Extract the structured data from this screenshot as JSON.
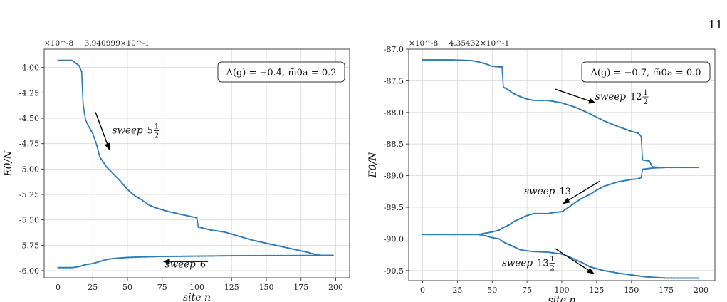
{
  "page_number": "11",
  "chart_data": [
    {
      "type": "line",
      "xlabel": "site n",
      "ylabel": "E0/N",
      "y_offset": "×10^-8 − 3.940999×10^-1",
      "xlim": [
        -10,
        210
      ],
      "ylim": [
        -6.07,
        -3.82
      ],
      "xticks": [
        0,
        25,
        50,
        75,
        100,
        125,
        150,
        175,
        200
      ],
      "yticks": [
        -6.0,
        -5.75,
        -5.5,
        -5.25,
        -5.0,
        -4.75,
        -4.5,
        -4.25,
        -4.0
      ],
      "ytick_labels": [
        "-6.00",
        "-5.75",
        "-5.50",
        "-5.25",
        "-5.00",
        "-4.75",
        "-4.50",
        "-4.25",
        "-4.00"
      ],
      "grid": true,
      "color": "#2f7bb6",
      "legend_box": "Δ(g) = −0.4, m̃0a = 0.2",
      "series": [
        {
          "x": [
            0,
            5,
            10,
            15,
            17,
            18,
            19,
            20,
            22,
            25,
            28,
            30,
            35,
            40,
            45,
            50,
            55,
            60,
            65,
            70,
            75,
            80,
            90,
            100,
            101,
            110,
            120,
            130,
            140,
            150,
            160,
            170,
            180,
            185,
            190,
            198
          ],
          "y": [
            -3.93,
            -3.93,
            -3.93,
            -3.98,
            -4.04,
            -4.35,
            -4.45,
            -4.52,
            -4.58,
            -4.65,
            -4.77,
            -4.88,
            -4.98,
            -5.05,
            -5.12,
            -5.2,
            -5.26,
            -5.3,
            -5.35,
            -5.38,
            -5.4,
            -5.42,
            -5.45,
            -5.48,
            -5.57,
            -5.6,
            -5.62,
            -5.66,
            -5.7,
            -5.73,
            -5.76,
            -5.79,
            -5.82,
            -5.84,
            -5.85,
            -5.85
          ]
        },
        {
          "x": [
            0,
            5,
            10,
            15,
            20,
            25,
            30,
            35,
            40,
            45,
            50,
            60,
            75,
            100,
            125,
            150,
            175,
            190,
            198
          ],
          "y": [
            -5.97,
            -5.97,
            -5.97,
            -5.96,
            -5.94,
            -5.93,
            -5.91,
            -5.89,
            -5.88,
            -5.875,
            -5.87,
            -5.865,
            -5.86,
            -5.857,
            -5.853,
            -5.852,
            -5.851,
            -5.85,
            -5.85
          ]
        }
      ],
      "annotations": [
        {
          "prefix": "sweep",
          "whole": "5",
          "num": "1",
          "den": "2",
          "arrow_from": [
            27,
            -4.44
          ],
          "arrow_to": [
            37,
            -4.81
          ],
          "text_at": [
            39,
            -4.65
          ]
        },
        {
          "prefix": "sweep",
          "whole": "6",
          "num": "",
          "den": "",
          "arrow_from": [
            108,
            -5.91
          ],
          "arrow_to": [
            76,
            -5.91
          ],
          "text_at": [
            77,
            -5.97
          ]
        }
      ]
    },
    {
      "type": "line",
      "xlabel": "site n",
      "ylabel": "E0/N",
      "y_offset": "×10^-8 − 4.35432×10^-1",
      "xlim": [
        -10,
        210
      ],
      "ylim": [
        -90.66,
        -87.0
      ],
      "xticks": [
        0,
        25,
        50,
        75,
        100,
        125,
        150,
        175,
        200
      ],
      "yticks": [
        -90.5,
        -90.0,
        -89.5,
        -89.0,
        -88.5,
        -88.0,
        -87.5,
        -87.0
      ],
      "ytick_labels": [
        "-90.5",
        "-90.0",
        "-89.5",
        "-89.0",
        "-88.5",
        "-88.0",
        "-87.5",
        "-87.0"
      ],
      "grid": true,
      "color": "#2f7bb6",
      "legend_box": "Δ(g) = −0.7, m̃0a = 0.0",
      "series": [
        {
          "x": [
            0,
            20,
            35,
            40,
            45,
            50,
            55,
            57,
            58,
            62,
            65,
            70,
            75,
            80,
            90,
            100,
            110,
            120,
            130,
            140,
            150,
            155,
            157,
            158,
            163,
            165,
            170,
            180,
            190,
            198
          ],
          "y": [
            -87.17,
            -87.17,
            -87.18,
            -87.2,
            -87.23,
            -87.27,
            -87.28,
            -87.28,
            -87.6,
            -87.65,
            -87.7,
            -87.75,
            -87.79,
            -87.81,
            -87.81,
            -87.85,
            -87.92,
            -88.02,
            -88.13,
            -88.22,
            -88.3,
            -88.33,
            -88.38,
            -88.75,
            -88.77,
            -88.86,
            -88.87,
            -88.87,
            -88.87,
            -88.87
          ]
        },
        {
          "x": [
            0,
            20,
            40,
            45,
            50,
            55,
            58,
            62,
            66,
            70,
            75,
            80,
            90,
            95,
            100,
            105,
            110,
            115,
            120,
            125,
            130,
            140,
            150,
            155,
            157,
            158,
            165,
            175,
            190,
            198
          ],
          "y": [
            -89.93,
            -89.93,
            -89.93,
            -89.91,
            -89.89,
            -89.86,
            -89.82,
            -89.78,
            -89.72,
            -89.68,
            -89.63,
            -89.6,
            -89.6,
            -89.58,
            -89.57,
            -89.5,
            -89.42,
            -89.35,
            -89.3,
            -89.23,
            -89.17,
            -89.1,
            -89.06,
            -89.05,
            -89.03,
            -88.9,
            -88.88,
            -88.87,
            -88.87,
            -88.87
          ]
        },
        {
          "x": [
            0,
            20,
            40,
            45,
            50,
            55,
            58,
            62,
            66,
            70,
            75,
            80,
            90,
            100,
            105,
            110,
            115,
            120,
            125,
            130,
            140,
            150,
            160,
            175,
            190,
            198
          ],
          "y": [
            -89.93,
            -89.93,
            -89.93,
            -89.95,
            -89.98,
            -90.0,
            -90.05,
            -90.09,
            -90.13,
            -90.17,
            -90.19,
            -90.2,
            -90.21,
            -90.24,
            -90.28,
            -90.33,
            -90.38,
            -90.44,
            -90.47,
            -90.5,
            -90.54,
            -90.57,
            -90.6,
            -90.62,
            -90.62,
            -90.62
          ]
        }
      ],
      "annotations": [
        {
          "prefix": "sweep",
          "whole": "12",
          "num": "1",
          "den": "2",
          "arrow_from": [
            95,
            -87.63
          ],
          "arrow_to": [
            124,
            -87.85
          ],
          "text_at": [
            124,
            -87.8
          ]
        },
        {
          "prefix": "sweep",
          "whole": "13",
          "num": "",
          "den": "",
          "arrow_from": [
            127,
            -89.09
          ],
          "arrow_to": [
            101,
            -89.44
          ],
          "text_at": [
            73,
            -89.3
          ]
        },
        {
          "prefix": "sweep",
          "whole": "13",
          "num": "1",
          "den": "2",
          "arrow_from": [
            95,
            -90.15
          ],
          "arrow_to": [
            123,
            -90.55
          ],
          "text_at": [
            57,
            -90.43
          ]
        }
      ]
    }
  ]
}
